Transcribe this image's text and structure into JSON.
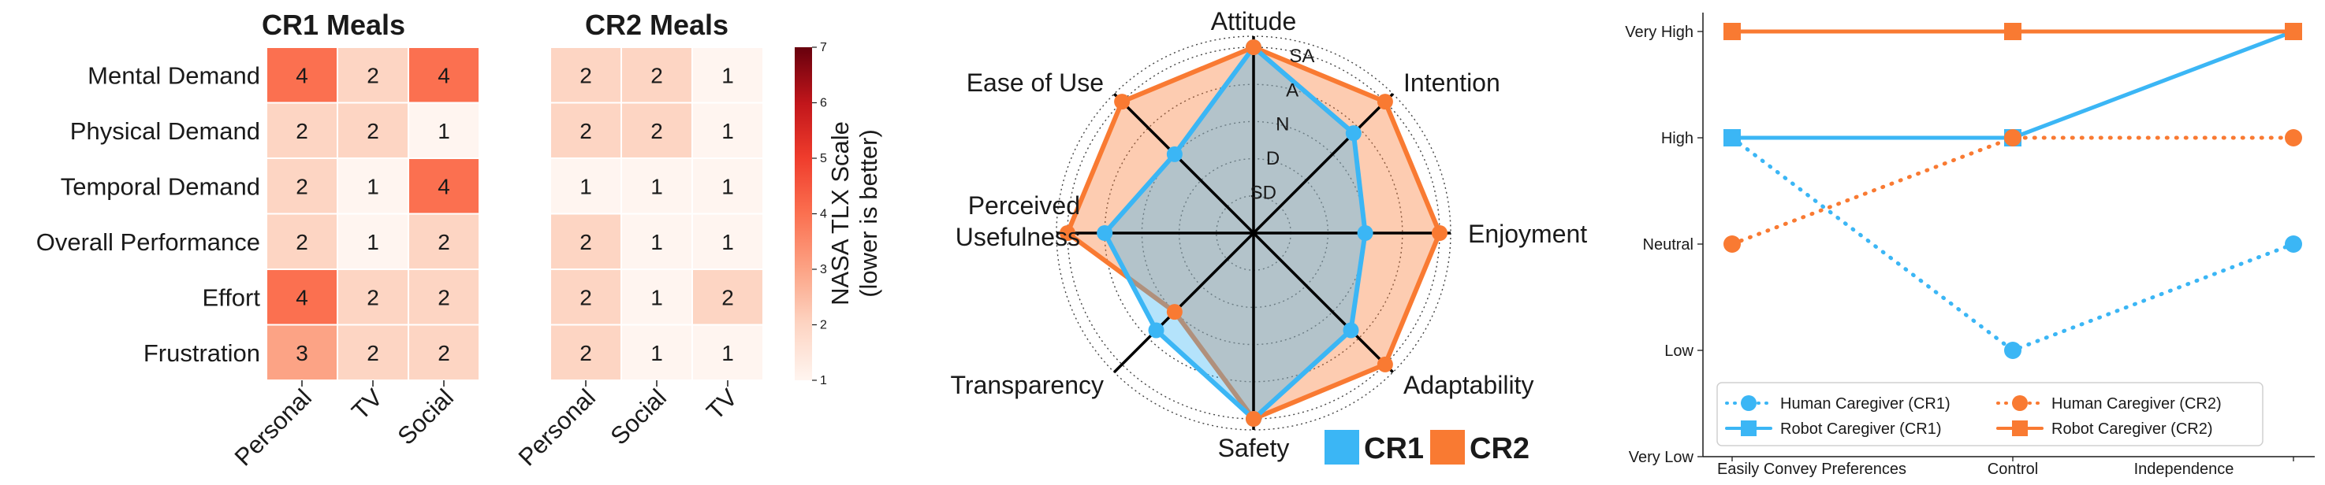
{
  "chart_data": [
    {
      "type": "heatmap",
      "title": "CR1 Meals",
      "rows": [
        "Mental Demand",
        "Physical Demand",
        "Temporal Demand",
        "Overall Performance",
        "Effort",
        "Frustration"
      ],
      "columns": [
        "Personal",
        "TV",
        "Social"
      ],
      "values": [
        [
          4,
          2,
          4
        ],
        [
          2,
          2,
          1
        ],
        [
          2,
          1,
          4
        ],
        [
          2,
          1,
          2
        ],
        [
          4,
          2,
          2
        ],
        [
          3,
          2,
          2
        ]
      ]
    },
    {
      "type": "heatmap",
      "title": "CR2 Meals",
      "rows": [
        "Mental Demand",
        "Physical Demand",
        "Temporal Demand",
        "Overall Performance",
        "Effort",
        "Frustration"
      ],
      "columns": [
        "Personal",
        "Social",
        "TV"
      ],
      "values": [
        [
          2,
          2,
          1
        ],
        [
          2,
          2,
          1
        ],
        [
          1,
          1,
          1
        ],
        [
          2,
          1,
          1
        ],
        [
          2,
          1,
          2
        ],
        [
          2,
          1,
          1
        ]
      ],
      "colorbar": {
        "label_lines": [
          "NASA TLX Scale",
          "(lower is better)"
        ],
        "range": [
          1,
          7
        ],
        "ticks": [
          1,
          2,
          3,
          4,
          5,
          6,
          7
        ]
      }
    },
    {
      "type": "radar",
      "axes": [
        "Attitude",
        "Intention",
        "Enjoyment",
        "Adaptability",
        "Safety",
        "Transparency",
        "Perceived Usefulness",
        "Ease of Use"
      ],
      "levels": [
        "SD",
        "D",
        "N",
        "A",
        "SA"
      ],
      "series": [
        {
          "name": "CR1",
          "color": "#3BB6F5",
          "values": [
            5,
            3.8,
            3,
            3.7,
            5,
            3.7,
            4,
            3
          ]
        },
        {
          "name": "CR2",
          "color": "#F97A32",
          "values": [
            5,
            5,
            5,
            5,
            5,
            3,
            5,
            5
          ]
        }
      ]
    },
    {
      "type": "line",
      "x_labels": [
        "Easily Convey Preferences",
        "Control",
        "Independence"
      ],
      "y_ticks": [
        "Very Low",
        "Low",
        "Neutral",
        "High",
        "Very High"
      ],
      "series": [
        {
          "name": "Human Caregiver (CR1)",
          "color": "#3BB6F5",
          "style": "dotted",
          "marker": "circle",
          "values": [
            "High",
            "Low",
            "Neutral"
          ]
        },
        {
          "name": "Robot Caregiver (CR1)",
          "color": "#3BB6F5",
          "style": "solid",
          "marker": "square",
          "values": [
            "High",
            "High",
            "Very High"
          ]
        },
        {
          "name": "Human Caregiver (CR2)",
          "color": "#F97A32",
          "style": "dotted",
          "marker": "circle",
          "values": [
            "Neutral",
            "High",
            "High"
          ]
        },
        {
          "name": "Robot Caregiver (CR2)",
          "color": "#F97A32",
          "style": "solid",
          "marker": "square",
          "values": [
            "Very High",
            "Very High",
            "Very High"
          ]
        }
      ],
      "legend_placement": "bottom"
    }
  ]
}
